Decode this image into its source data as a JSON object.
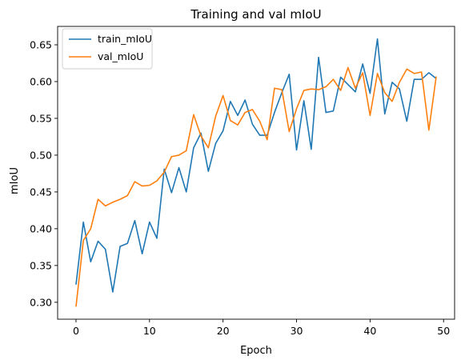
{
  "chart_data": {
    "type": "line",
    "title": "Training and val mIoU",
    "xlabel": "Epoch",
    "ylabel": "mIoU",
    "xlim": [
      -2.5,
      51.5
    ],
    "ylim": [
      0.277,
      0.675
    ],
    "xticks": [
      0,
      10,
      20,
      30,
      40,
      50
    ],
    "yticks": [
      0.3,
      0.35,
      0.4,
      0.45,
      0.5,
      0.55,
      0.6,
      0.65
    ],
    "grid": false,
    "legend_position": "top-left",
    "x": [
      0,
      1,
      2,
      3,
      4,
      5,
      6,
      7,
      8,
      9,
      10,
      11,
      12,
      13,
      14,
      15,
      16,
      17,
      18,
      19,
      20,
      21,
      22,
      23,
      24,
      25,
      26,
      27,
      28,
      29,
      30,
      31,
      32,
      33,
      34,
      35,
      36,
      37,
      38,
      39,
      40,
      41,
      42,
      43,
      44,
      45,
      46,
      47,
      48,
      49
    ],
    "series": [
      {
        "name": "train_mIoU",
        "color": "#1f77b4",
        "values": [
          0.324,
          0.409,
          0.355,
          0.383,
          0.372,
          0.314,
          0.376,
          0.38,
          0.411,
          0.366,
          0.409,
          0.387,
          0.481,
          0.449,
          0.483,
          0.45,
          0.51,
          0.53,
          0.478,
          0.516,
          0.533,
          0.573,
          0.554,
          0.575,
          0.542,
          0.527,
          0.527,
          0.558,
          0.585,
          0.61,
          0.507,
          0.574,
          0.508,
          0.633,
          0.558,
          0.56,
          0.606,
          0.596,
          0.586,
          0.624,
          0.584,
          0.658,
          0.556,
          0.599,
          0.59,
          0.546,
          0.603,
          0.603,
          0.612,
          0.604
        ]
      },
      {
        "name": "val_mIoU",
        "color": "#ff7f0e",
        "values": [
          0.294,
          0.384,
          0.4,
          0.44,
          0.431,
          0.436,
          0.44,
          0.445,
          0.464,
          0.458,
          0.459,
          0.465,
          0.477,
          0.498,
          0.5,
          0.506,
          0.555,
          0.526,
          0.51,
          0.553,
          0.581,
          0.547,
          0.541,
          0.558,
          0.562,
          0.546,
          0.521,
          0.591,
          0.589,
          0.532,
          0.563,
          0.588,
          0.59,
          0.589,
          0.593,
          0.603,
          0.588,
          0.619,
          0.591,
          0.612,
          0.554,
          0.611,
          0.585,
          0.573,
          0.599,
          0.617,
          0.611,
          0.613,
          0.534,
          0.607
        ]
      }
    ]
  }
}
